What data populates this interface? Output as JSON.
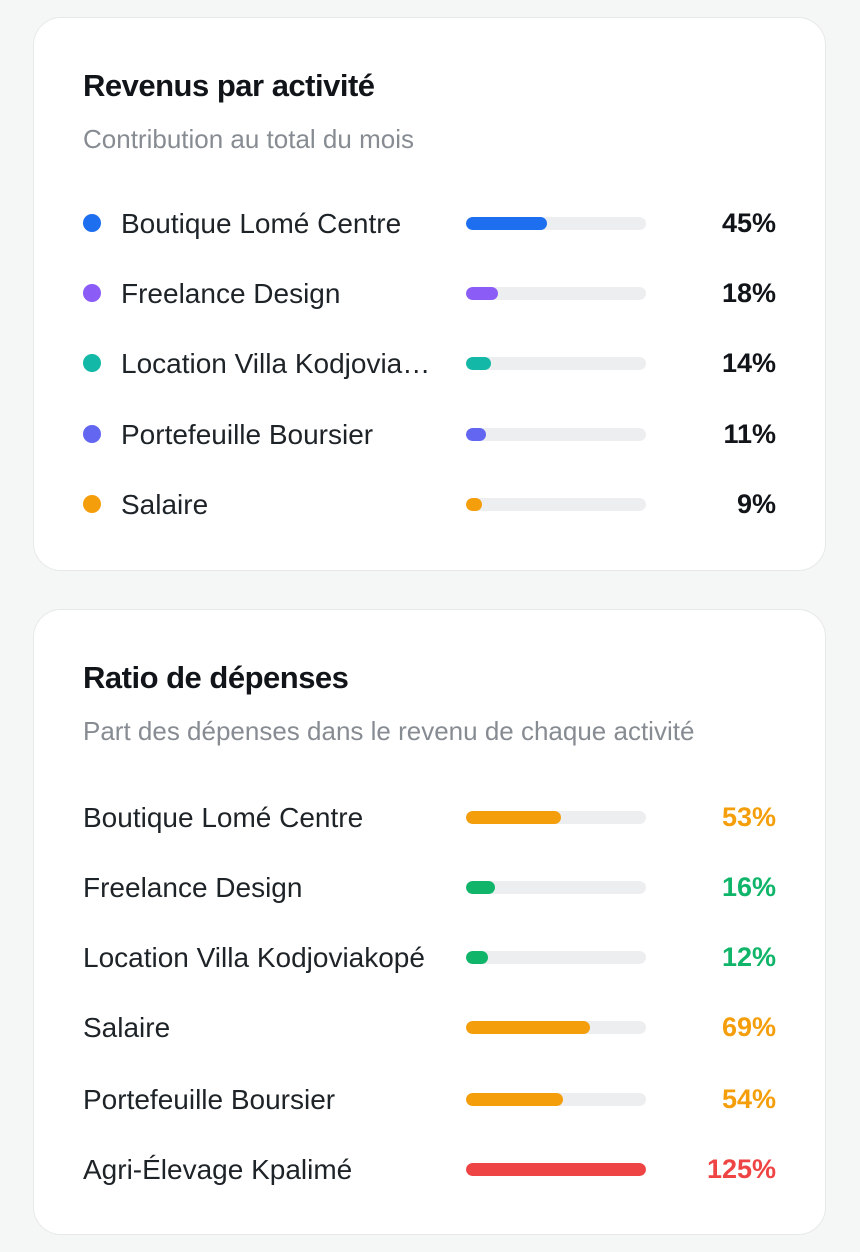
{
  "revenue_card": {
    "title": "Revenus par activité",
    "subtitle": "Contribution au total du mois",
    "rows": [
      {
        "label": "Boutique Lomé Centre",
        "percent": "45%",
        "value": 45,
        "color": "#1e6ff0"
      },
      {
        "label": "Freelance Design",
        "percent": "18%",
        "value": 18,
        "color": "#8b5cf6"
      },
      {
        "label": "Location Villa Kodjoviakopé",
        "percent": "14%",
        "value": 14,
        "color": "#14b8a6"
      },
      {
        "label": "Portefeuille Boursier",
        "percent": "11%",
        "value": 11,
        "color": "#6366f1"
      },
      {
        "label": "Salaire",
        "percent": "9%",
        "value": 9,
        "color": "#f59e0b"
      }
    ]
  },
  "expense_card": {
    "title": "Ratio de dépenses",
    "subtitle": "Part des dépenses dans le revenu de chaque activité",
    "rows": [
      {
        "label": "Boutique Lomé Centre",
        "percent": "53%",
        "value": 53,
        "color": "#f59e0b"
      },
      {
        "label": "Freelance Design",
        "percent": "16%",
        "value": 16,
        "color": "#10b56a"
      },
      {
        "label": "Location Villa Kodjoviakopé",
        "percent": "12%",
        "value": 12,
        "color": "#10b56a"
      },
      {
        "label": "Salaire",
        "percent": "69%",
        "value": 69,
        "color": "#f59e0b"
      },
      {
        "label": "Portefeuille Boursier",
        "percent": "54%",
        "value": 54,
        "color": "#f59e0b"
      },
      {
        "label": "Agri-Élevage Kpalimé",
        "percent": "125%",
        "value": 125,
        "color": "#ef4444"
      }
    ]
  },
  "colors": {
    "neutral_text": "#111418",
    "percent_default": "#111418",
    "track": "#eceef0"
  }
}
